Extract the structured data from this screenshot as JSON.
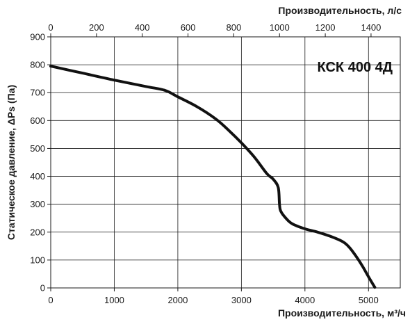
{
  "chart_data": {
    "type": "line",
    "title": "КСК 400 4Д",
    "xlabel": "Производительность, м³/ч",
    "x2label": "Производительность, л/с",
    "ylabel": "Статическое давление, ΔPs (Па)",
    "xlim": [
      0,
      5500
    ],
    "ylim": [
      0,
      900
    ],
    "x2lim": [
      0,
      1527.78
    ],
    "xticks": [
      0,
      1000,
      2000,
      3000,
      4000,
      5000
    ],
    "x2ticks": [
      0,
      200,
      400,
      600,
      800,
      1000,
      1200,
      1400
    ],
    "yticks": [
      0,
      100,
      200,
      300,
      400,
      500,
      600,
      700,
      800,
      900
    ],
    "grid": true,
    "series": [
      {
        "x": [
          0,
          500,
          1000,
          1500,
          1800,
          2000,
          2300,
          2600,
          2800,
          3000,
          3200,
          3400,
          3500,
          3580,
          3600,
          3620,
          3700,
          3800,
          4000,
          4200,
          4400,
          4600,
          4700,
          4800,
          4900,
          5000,
          5100
        ],
        "y": [
          795,
          770,
          745,
          722,
          708,
          685,
          650,
          605,
          565,
          520,
          470,
          410,
          390,
          360,
          300,
          275,
          250,
          230,
          212,
          200,
          185,
          165,
          145,
          115,
          80,
          40,
          2
        ],
        "color": "#111111"
      }
    ]
  }
}
